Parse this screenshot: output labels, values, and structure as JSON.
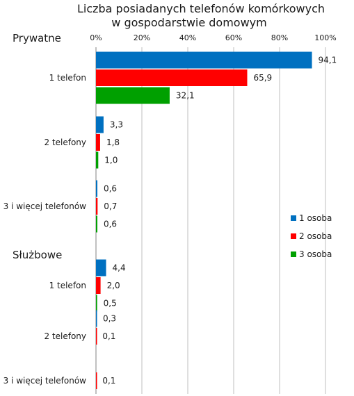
{
  "chart_data": {
    "type": "bar",
    "orientation": "horizontal",
    "title": "Liczba posiadanych telefonów komórkowych\nw gospodarstwie domowym",
    "xlim": [
      0,
      100
    ],
    "x_ticks": [
      "0%",
      "20%",
      "40%",
      "60%",
      "80%",
      "100%"
    ],
    "grid": true,
    "legend_position": "right",
    "series": [
      {
        "name": "1 osoba",
        "color": "#0070C0"
      },
      {
        "name": "2 osoba",
        "color": "#FF0000"
      },
      {
        "name": "3 osoba",
        "color": "#00A000"
      }
    ],
    "groups": [
      {
        "name": "Prywatne",
        "categories": [
          {
            "label": "1 telefon",
            "values": [
              94.1,
              65.9,
              32.1
            ],
            "value_labels": [
              "94,1",
              "65,9",
              "32,1"
            ]
          },
          {
            "label": "2 telefony",
            "values": [
              3.3,
              1.8,
              1.0
            ],
            "value_labels": [
              "3,3",
              "1,8",
              "1,0"
            ]
          },
          {
            "label": "3 i więcej telefonów",
            "values": [
              0.6,
              0.7,
              0.6
            ],
            "value_labels": [
              "0,6",
              "0,7",
              "0,6"
            ]
          }
        ]
      },
      {
        "name": "Służbowe",
        "categories": [
          {
            "label": "1 telefon",
            "values": [
              4.4,
              2.0,
              0.5
            ],
            "value_labels": [
              "4,4",
              "2,0",
              "0,5"
            ]
          },
          {
            "label": "2 telefony",
            "values": [
              0.3,
              0.1,
              null
            ],
            "value_labels": [
              "0,3",
              "0,1",
              null
            ]
          },
          {
            "label": "3 i więcej telefonów",
            "values": [
              null,
              0.1,
              null
            ],
            "value_labels": [
              null,
              "0,1",
              null
            ]
          }
        ]
      }
    ]
  }
}
